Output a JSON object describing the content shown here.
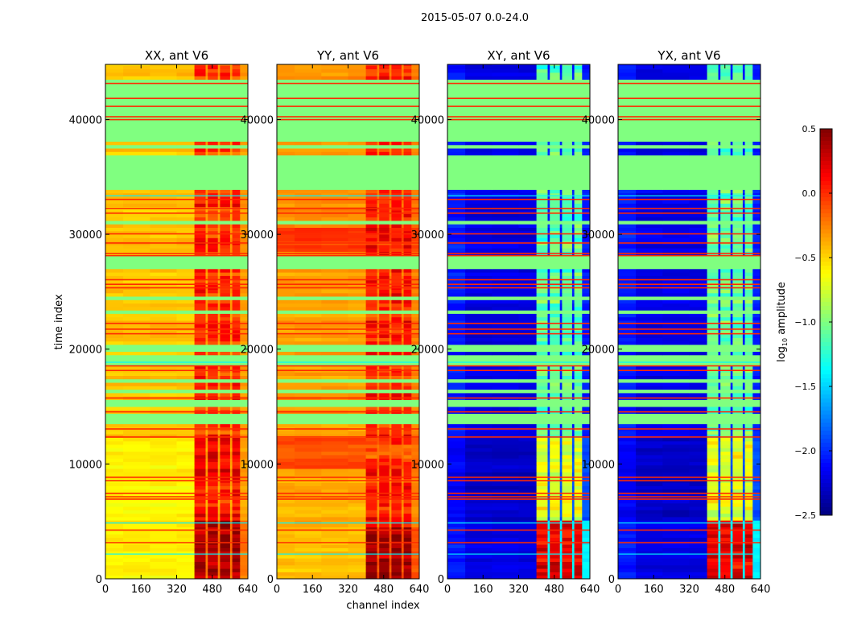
{
  "chart_data": {
    "type": "heatmap",
    "title": "2015-05-07 0.0-24.0",
    "xlabel": "channel index",
    "ylabel": "time index",
    "xlim": [
      0,
      640
    ],
    "ylim": [
      0,
      44800
    ],
    "xticks": [
      "0",
      "160",
      "320",
      "480",
      "640"
    ],
    "xtick_values": [
      0,
      160,
      320,
      480,
      640
    ],
    "yticks": [
      "0",
      "10000",
      "20000",
      "30000",
      "40000"
    ],
    "ytick_values": [
      0,
      10000,
      20000,
      30000,
      40000
    ],
    "colorbar": {
      "label_main": "log",
      "label_sub": "10",
      "label_rest": " amplitude",
      "range": [
        -2.5,
        0.5
      ],
      "ticks": [
        "0.5",
        "0.0",
        "−0.5",
        "−1.0",
        "−1.5",
        "−2.0",
        "−2.5"
      ],
      "tick_values": [
        0.5,
        0.0,
        -0.5,
        -1.0,
        -1.5,
        -2.0,
        -2.5
      ],
      "colormap": "jet"
    },
    "flagged_value": -1.0,
    "flagged_ranges": [
      [
        37900,
        43300
      ],
      [
        33700,
        36700
      ],
      [
        26900,
        28000
      ],
      [
        18500,
        19300
      ],
      [
        15000,
        15600
      ],
      [
        13300,
        14200
      ],
      [
        16200,
        16500
      ],
      [
        17000,
        17300
      ],
      [
        19800,
        20200
      ],
      [
        20800,
        21000
      ],
      [
        23000,
        23200
      ],
      [
        24300,
        24500
      ],
      [
        30800,
        31100
      ],
      [
        37400,
        37600
      ]
    ],
    "rfi_lines": [
      43200,
      41900,
      41200,
      40300,
      40050,
      33100,
      32300,
      31900,
      30100,
      29300,
      28400,
      28200,
      26100,
      25700,
      25400,
      22300,
      21800,
      21400,
      18600,
      18200,
      15800,
      14600,
      13100,
      12400,
      8900,
      8600,
      7500,
      7200,
      7000,
      4300,
      3200
    ],
    "cyan_lines": [
      33400,
      18900,
      4900,
      2200
    ],
    "channel_bands": [
      [
        400,
        450
      ],
      [
        460,
        505
      ],
      [
        515,
        560
      ],
      [
        570,
        605
      ]
    ],
    "panels": [
      {
        "title": "XX, ant V6",
        "low": -0.45,
        "band": 0.0,
        "gap": -0.3,
        "segments": [
          [
            0,
            5000,
            -0.6,
            0.35
          ],
          [
            5000,
            12300,
            -0.6,
            0.1
          ],
          [
            12300,
            45000,
            -0.45,
            0.0
          ]
        ]
      },
      {
        "title": "YY, ant V6",
        "low": -0.35,
        "band": 0.1,
        "gap": -0.2,
        "segments": [
          [
            0,
            4500,
            -0.45,
            0.4
          ],
          [
            4500,
            9500,
            -0.4,
            0.05
          ],
          [
            9500,
            12300,
            -0.1,
            -0.05
          ],
          [
            12300,
            28500,
            -0.35,
            0.05
          ],
          [
            28500,
            30500,
            -0.05,
            0.05
          ],
          [
            30500,
            45000,
            -0.3,
            0.05
          ]
        ]
      },
      {
        "title": "XY, ant V6",
        "low": -2.3,
        "band": -1.1,
        "gap": -1.8,
        "segments": [
          [
            0,
            5000,
            -2.2,
            0.2
          ],
          [
            5000,
            12300,
            -2.3,
            -0.7
          ],
          [
            12300,
            45000,
            -2.2,
            -1.1
          ]
        ]
      },
      {
        "title": "YX, ant V6",
        "low": -2.3,
        "band": -1.1,
        "gap": -1.8,
        "segments": [
          [
            0,
            5000,
            -2.2,
            0.2
          ],
          [
            5000,
            12300,
            -2.3,
            -0.7
          ],
          [
            12300,
            45000,
            -2.2,
            -1.1
          ]
        ]
      }
    ]
  }
}
